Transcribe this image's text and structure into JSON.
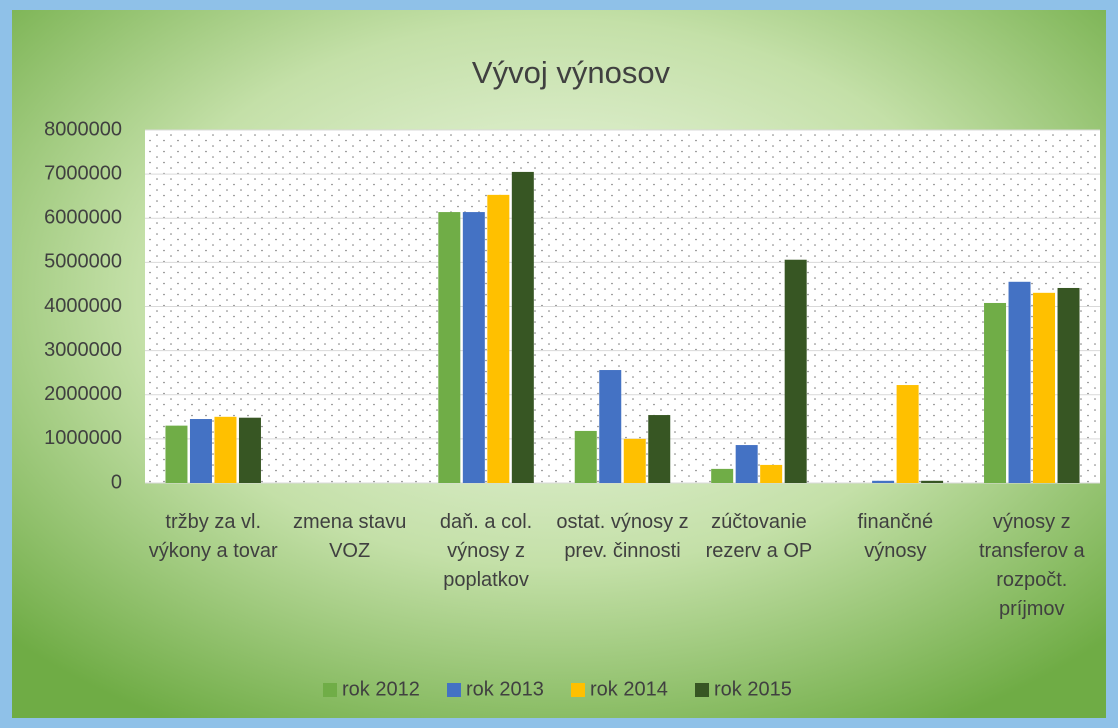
{
  "chart_data": {
    "type": "bar",
    "title": "Vývoj výnosov",
    "categories": [
      "tržby za vl. výkony a tovar",
      "zmena stavu VOZ",
      "daň. a col. výnosy z poplatkov",
      "ostat. výnosy z prev. činnosti",
      "zúčtovanie rezerv a OP",
      "finančné výnosy",
      "výnosy z transferov a rozpočt. príjmov"
    ],
    "series": [
      {
        "name": "rok 2012",
        "color": "#70ad47",
        "values": [
          1300000,
          0,
          6140000,
          1180000,
          320000,
          0,
          4080000
        ]
      },
      {
        "name": "rok 2013",
        "color": "#4472c4",
        "values": [
          1450000,
          0,
          6140000,
          2560000,
          860000,
          50000,
          4560000
        ]
      },
      {
        "name": "rok 2014",
        "color": "#ffc000",
        "values": [
          1500000,
          0,
          6530000,
          1000000,
          410000,
          2220000,
          4310000
        ]
      },
      {
        "name": "rok 2015",
        "color": "#375623",
        "values": [
          1480000,
          0,
          7050000,
          1540000,
          5060000,
          50000,
          4420000
        ]
      }
    ],
    "ylim": [
      0,
      8000000
    ],
    "yticks": [
      0,
      1000000,
      2000000,
      3000000,
      4000000,
      5000000,
      6000000,
      7000000,
      8000000
    ],
    "grid": true,
    "legend": "bottom"
  }
}
